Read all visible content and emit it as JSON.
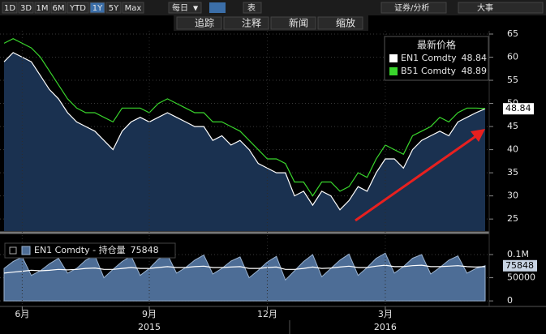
{
  "toolbar": {
    "ranges": [
      "1D",
      "3D",
      "1M",
      "6M",
      "YTD",
      "1Y",
      "5Y",
      "Max"
    ],
    "frequency": "每日",
    "table": "表",
    "security": "证券/分析",
    "events": "大事"
  },
  "tools": [
    "追踪",
    "注释",
    "新闻",
    "缩放"
  ],
  "chart_data": [
    {
      "type": "line",
      "legend_title": "最新价格",
      "ylim": [
        22.4,
        65.7
      ],
      "yticks": [
        25,
        30,
        35,
        40,
        45,
        50,
        55,
        60,
        65
      ],
      "grid": true,
      "series": [
        {
          "name": "EN1 Comdty",
          "color": "#ffffff",
          "area_color": "#1a3150",
          "values": [
            59,
            61,
            60,
            59,
            56,
            53,
            51,
            48,
            46,
            45,
            44,
            42,
            40,
            44,
            46,
            47,
            46,
            47,
            48,
            47,
            46,
            45,
            45,
            42,
            43,
            41,
            42,
            40,
            37,
            36,
            35,
            35,
            30,
            31,
            28,
            31,
            30,
            27,
            29,
            32,
            31,
            35,
            38,
            38,
            36,
            40,
            42,
            43,
            44,
            43,
            46,
            47,
            48,
            48.84
          ]
        },
        {
          "name": "B51 Comdty",
          "color": "#39d52c",
          "values": [
            63,
            64,
            63,
            62,
            60,
            57,
            54,
            51,
            49,
            48,
            48,
            47,
            46,
            49,
            49,
            49,
            48,
            50,
            51,
            50,
            49,
            48,
            48,
            46,
            46,
            45,
            44,
            42,
            40,
            38,
            38,
            37,
            33,
            33,
            30,
            33,
            33,
            31,
            32,
            35,
            34,
            38,
            41,
            40,
            39,
            43,
            44,
            45,
            47,
            46,
            48,
            49,
            49,
            48.89
          ]
        }
      ]
    },
    {
      "type": "area",
      "legend_title": "EN1 Comdty - 持仓量",
      "ylim": [
        -12000,
        142000
      ],
      "yticks": [
        {
          "value": 100000,
          "label": "0.1M"
        },
        50000,
        0
      ],
      "grid": true,
      "categories": [
        null,
        null,
        "6月",
        null,
        null,
        null,
        null,
        null,
        null,
        null,
        null,
        null,
        null,
        null,
        null,
        null,
        "9月",
        null,
        null,
        null,
        null,
        null,
        null,
        null,
        null,
        null,
        null,
        null,
        null,
        "12月",
        null,
        null,
        null,
        null,
        null,
        null,
        null,
        null,
        null,
        null,
        null,
        null,
        "3月",
        null,
        null,
        null,
        null,
        null,
        null,
        null,
        null,
        null,
        null,
        null
      ],
      "years": [
        null,
        null,
        null,
        null,
        null,
        null,
        null,
        null,
        null,
        null,
        null,
        null,
        null,
        null,
        null,
        null,
        "2015",
        null,
        null,
        null,
        null,
        null,
        null,
        null,
        null,
        null,
        null,
        null,
        null,
        null,
        null,
        null,
        null,
        null,
        null,
        null,
        null,
        null,
        null,
        null,
        null,
        null,
        "2016",
        null,
        null,
        null,
        null,
        null,
        null,
        null,
        null,
        null,
        null,
        null
      ],
      "series": [
        {
          "color": "#4d6d96",
          "values": [
            70000,
            85000,
            95000,
            55000,
            65000,
            80000,
            92000,
            60000,
            70000,
            88000,
            98000,
            50000,
            68000,
            85000,
            97000,
            55000,
            70000,
            90000,
            100000,
            60000,
            72000,
            88000,
            99000,
            58000,
            70000,
            86000,
            95000,
            50000,
            66000,
            84000,
            96000,
            45000,
            65000,
            85000,
            100000,
            52000,
            70000,
            88000,
            101000,
            55000,
            72000,
            92000,
            103000,
            60000,
            74000,
            92000,
            100000,
            58000,
            72000,
            88000,
            97000,
            60000,
            70000,
            75848
          ]
        },
        {
          "color": "#ffffff",
          "values": [
            60000,
            62000,
            64000,
            66000,
            65000,
            66000,
            68000,
            67000,
            68000,
            70000,
            71000,
            68000,
            68000,
            70000,
            72000,
            70000,
            70000,
            72000,
            74000,
            72000,
            72000,
            74000,
            75000,
            72000,
            72000,
            73000,
            74000,
            70000,
            70000,
            72000,
            73000,
            68000,
            68000,
            70000,
            73000,
            70000,
            71000,
            73000,
            75000,
            72000,
            72000,
            75000,
            77000,
            74000,
            74000,
            76000,
            77000,
            74000,
            74000,
            75000,
            76000,
            74000,
            73000,
            74000
          ]
        }
      ]
    }
  ]
}
